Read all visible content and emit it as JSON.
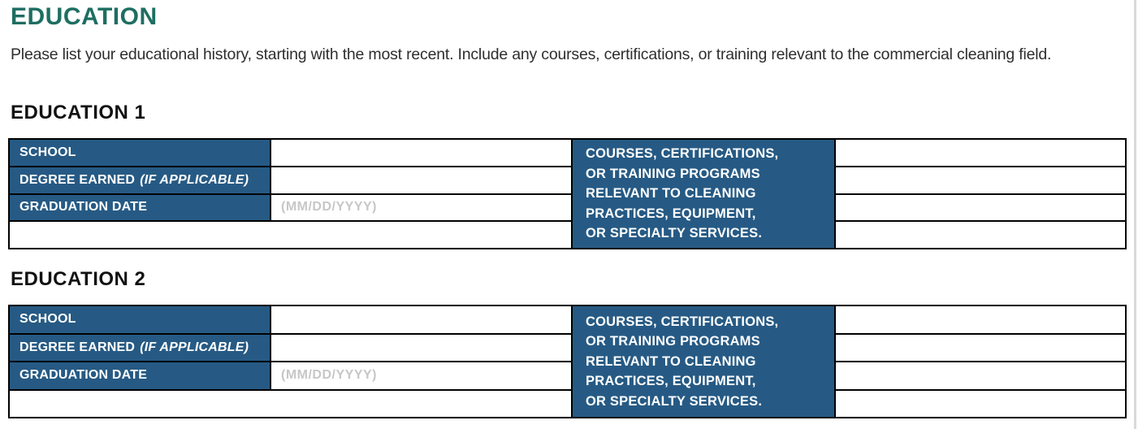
{
  "header": {
    "title": "EDUCATION",
    "intro": "Please list your educational history, starting with the most recent. Include any courses, certifications, or training relevant to the commercial cleaning field."
  },
  "colors": {
    "accent_teal": "#1E6E62",
    "table_blue": "#265A84",
    "placeholder_gray": "#C7C7C7",
    "border_black": "#000000"
  },
  "sections": [
    {
      "heading": "EDUCATION 1",
      "school_label": "SCHOOL",
      "school_value": "",
      "degree_label": "DEGREE EARNED",
      "degree_note": "(IF APPLICABLE)",
      "degree_value": "",
      "graduation_label": "GRADUATION DATE",
      "graduation_placeholder": "(MM/DD/YYYY)",
      "graduation_value": "",
      "courses_lines": [
        "COURSES, CERTIFICATIONS,",
        "OR TRAINING PROGRAMS",
        "RELEVANT TO CLEANING",
        "PRACTICES, EQUIPMENT,",
        "OR SPECIALTY SERVICES."
      ],
      "courses_values": [
        "",
        "",
        "",
        ""
      ],
      "extra_row_value": ""
    },
    {
      "heading": "EDUCATION 2",
      "school_label": "SCHOOL",
      "school_value": "",
      "degree_label": "DEGREE EARNED",
      "degree_note": "(IF APPLICABLE)",
      "degree_value": "",
      "graduation_label": "GRADUATION DATE",
      "graduation_placeholder": "(MM/DD/YYYY)",
      "graduation_value": "",
      "courses_lines": [
        "COURSES, CERTIFICATIONS,",
        "OR TRAINING PROGRAMS",
        "RELEVANT TO CLEANING",
        "PRACTICES, EQUIPMENT,",
        "OR SPECIALTY SERVICES."
      ],
      "courses_values": [
        "",
        "",
        "",
        ""
      ],
      "extra_row_value": ""
    }
  ]
}
